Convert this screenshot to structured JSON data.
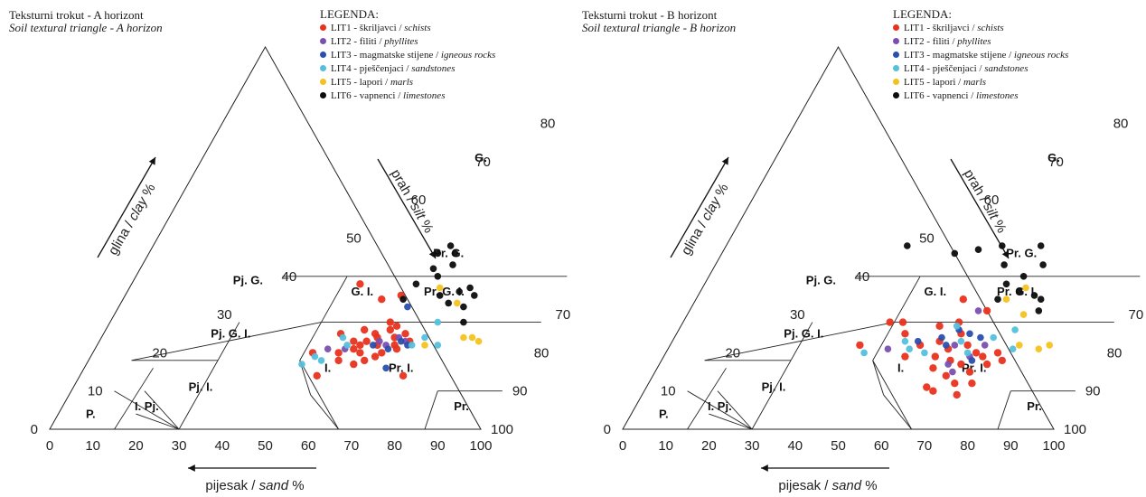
{
  "ticks": [
    "0",
    "10",
    "20",
    "30",
    "40",
    "50",
    "60",
    "70",
    "80",
    "90",
    "100"
  ],
  "legend": {
    "title": "LEGENDA:",
    "items": [
      {
        "code": "LIT1",
        "name": "škriljavci",
        "name_en": "schists",
        "color": "#e8321e"
      },
      {
        "code": "LIT2",
        "name": "filiti",
        "name_en": "phyllites",
        "color": "#7a4fb0"
      },
      {
        "code": "LIT3",
        "name": "magmatske stijene",
        "name_en": "igneous rocks",
        "color": "#2a4fae"
      },
      {
        "code": "LIT4",
        "name": "pješčenjaci",
        "name_en": "sandstones",
        "color": "#54c0dc"
      },
      {
        "code": "LIT5",
        "name": "lapori",
        "name_en": "marls",
        "color": "#f4c21e"
      },
      {
        "code": "LIT6",
        "name": "vapnenci",
        "name_en": "limestones",
        "color": "#0d0d0d"
      }
    ]
  },
  "axes": {
    "sand": {
      "prefix": "pijesak / ",
      "italic": "sand",
      "suffix": "  %"
    },
    "clay": {
      "prefix": "glina / ",
      "italic": "clay",
      "suffix": "  %"
    },
    "silt": {
      "prefix": "prah / ",
      "italic": "silt",
      "suffix": "  %"
    }
  },
  "zones": [
    "G.",
    "Pr. G.",
    "Pj. G.",
    "G. I.",
    "Pr. G. I.",
    "Pj. G. I.",
    "I.",
    "Pr. I.",
    "Pj. I.",
    "I. Pj.",
    "P.",
    "Pr."
  ],
  "panels": [
    {
      "title": "Teksturni trokut - A horizont",
      "subtitle": "Soil textural triangle - A horizon",
      "points": [
        {
          "s": 49,
          "c": 20,
          "k": "LIT1"
        },
        {
          "s": 45,
          "c": 25,
          "k": "LIT1"
        },
        {
          "s": 43,
          "c": 20,
          "k": "LIT1"
        },
        {
          "s": 42,
          "c": 18,
          "k": "LIT1"
        },
        {
          "s": 41,
          "c": 23,
          "k": "LIT1"
        },
        {
          "s": 40,
          "c": 26,
          "k": "LIT1"
        },
        {
          "s": 39,
          "c": 22,
          "k": "LIT1"
        },
        {
          "s": 38,
          "c": 20,
          "k": "LIT1"
        },
        {
          "s": 37,
          "c": 25,
          "k": "LIT1"
        },
        {
          "s": 36,
          "c": 18,
          "k": "LIT1"
        },
        {
          "s": 35,
          "c": 22,
          "k": "LIT1"
        },
        {
          "s": 34,
          "c": 26,
          "k": "LIT1"
        },
        {
          "s": 33,
          "c": 20,
          "k": "LIT1"
        },
        {
          "s": 32,
          "c": 24,
          "k": "LIT1"
        },
        {
          "s": 31,
          "c": 22,
          "k": "LIT1"
        },
        {
          "s": 30,
          "c": 25,
          "k": "LIT1"
        },
        {
          "s": 38,
          "c": 17,
          "k": "LIT1"
        },
        {
          "s": 36,
          "c": 24,
          "k": "LIT1"
        },
        {
          "s": 34,
          "c": 19,
          "k": "LIT1"
        },
        {
          "s": 35,
          "c": 28,
          "k": "LIT1"
        },
        {
          "s": 40,
          "c": 21,
          "k": "LIT1"
        },
        {
          "s": 30,
          "c": 21,
          "k": "LIT1"
        },
        {
          "s": 40,
          "c": 34,
          "k": "LIT1"
        },
        {
          "s": 36,
          "c": 35,
          "k": "LIT1"
        },
        {
          "s": 47,
          "c": 38,
          "k": "LIT1"
        },
        {
          "s": 45,
          "c": 14,
          "k": "LIT1"
        },
        {
          "s": 38,
          "c": 23,
          "k": "LIT1"
        },
        {
          "s": 33,
          "c": 27,
          "k": "LIT1"
        },
        {
          "s": 28,
          "c": 23,
          "k": "LIT1"
        },
        {
          "s": 25,
          "c": 14,
          "k": "LIT1"
        },
        {
          "s": 42,
          "c": 21,
          "k": "LIT2"
        },
        {
          "s": 35,
          "c": 23,
          "k": "LIT2"
        },
        {
          "s": 33,
          "c": 22,
          "k": "LIT2"
        },
        {
          "s": 31,
          "c": 24,
          "k": "LIT2"
        },
        {
          "s": 29,
          "c": 23,
          "k": "LIT2"
        },
        {
          "s": 46,
          "c": 21,
          "k": "LIT2"
        },
        {
          "s": 33,
          "c": 32,
          "k": "LIT3"
        },
        {
          "s": 36,
          "c": 22,
          "k": "LIT3"
        },
        {
          "s": 32,
          "c": 21,
          "k": "LIT3"
        },
        {
          "s": 30,
          "c": 23,
          "k": "LIT3"
        },
        {
          "s": 28,
          "c": 22,
          "k": "LIT3"
        },
        {
          "s": 30,
          "c": 16,
          "k": "LIT3"
        },
        {
          "s": 48,
          "c": 19,
          "k": "LIT4"
        },
        {
          "s": 42,
          "c": 22,
          "k": "LIT4"
        },
        {
          "s": 44,
          "c": 24,
          "k": "LIT4"
        },
        {
          "s": 27,
          "c": 22,
          "k": "LIT4"
        },
        {
          "s": 25,
          "c": 24,
          "k": "LIT4"
        },
        {
          "s": 24,
          "c": 28,
          "k": "LIT4"
        },
        {
          "s": 21,
          "c": 22,
          "k": "LIT4"
        },
        {
          "s": 46,
          "c": 18,
          "k": "LIT4"
        },
        {
          "s": 50,
          "c": 17,
          "k": "LIT4"
        },
        {
          "s": 28,
          "c": 37,
          "k": "LIT5"
        },
        {
          "s": 22,
          "c": 33,
          "k": "LIT5"
        },
        {
          "s": 16,
          "c": 24,
          "k": "LIT5"
        },
        {
          "s": 14,
          "c": 24,
          "k": "LIT5"
        },
        {
          "s": 12,
          "c": 23,
          "k": "LIT5"
        },
        {
          "s": 24,
          "c": 22,
          "k": "LIT5"
        },
        {
          "s": 33,
          "c": 46,
          "k": "LIT6"
        },
        {
          "s": 31,
          "c": 48,
          "k": "LIT6"
        },
        {
          "s": 29,
          "c": 46,
          "k": "LIT6"
        },
        {
          "s": 32,
          "c": 42,
          "k": "LIT6"
        },
        {
          "s": 30,
          "c": 40,
          "k": "LIT6"
        },
        {
          "s": 34,
          "c": 38,
          "k": "LIT6"
        },
        {
          "s": 28,
          "c": 43,
          "k": "LIT6"
        },
        {
          "s": 27,
          "c": 35,
          "k": "LIT6"
        },
        {
          "s": 24,
          "c": 33,
          "k": "LIT6"
        },
        {
          "s": 23,
          "c": 36,
          "k": "LIT6"
        },
        {
          "s": 21,
          "c": 37,
          "k": "LIT6"
        },
        {
          "s": 19,
          "c": 35,
          "k": "LIT6"
        },
        {
          "s": 20,
          "c": 32,
          "k": "LIT6"
        },
        {
          "s": 18,
          "c": 28,
          "k": "LIT6"
        },
        {
          "s": 35,
          "c": 34,
          "k": "LIT6"
        }
      ]
    },
    {
      "title": "Teksturni trokut - B horizont",
      "subtitle": "Soil textural triangle - B horizon",
      "points": [
        {
          "s": 56,
          "c": 22,
          "k": "LIT1"
        },
        {
          "s": 52,
          "c": 28,
          "k": "LIT1"
        },
        {
          "s": 49,
          "c": 28,
          "k": "LIT1"
        },
        {
          "s": 47,
          "c": 25,
          "k": "LIT1"
        },
        {
          "s": 44,
          "c": 19,
          "k": "LIT1"
        },
        {
          "s": 42,
          "c": 22,
          "k": "LIT1"
        },
        {
          "s": 40,
          "c": 27,
          "k": "LIT1"
        },
        {
          "s": 38,
          "c": 23,
          "k": "LIT1"
        },
        {
          "s": 37,
          "c": 19,
          "k": "LIT1"
        },
        {
          "s": 36,
          "c": 16,
          "k": "LIT1"
        },
        {
          "s": 35,
          "c": 21,
          "k": "LIT1"
        },
        {
          "s": 34,
          "c": 25,
          "k": "LIT1"
        },
        {
          "s": 33,
          "c": 18,
          "k": "LIT1"
        },
        {
          "s": 32,
          "c": 14,
          "k": "LIT1"
        },
        {
          "s": 31,
          "c": 22,
          "k": "LIT1"
        },
        {
          "s": 30,
          "c": 17,
          "k": "LIT1"
        },
        {
          "s": 29,
          "c": 12,
          "k": "LIT1"
        },
        {
          "s": 28,
          "c": 20,
          "k": "LIT1"
        },
        {
          "s": 27,
          "c": 15,
          "k": "LIT1"
        },
        {
          "s": 26,
          "c": 19,
          "k": "LIT1"
        },
        {
          "s": 25,
          "c": 12,
          "k": "LIT1"
        },
        {
          "s": 24,
          "c": 17,
          "k": "LIT1"
        },
        {
          "s": 35,
          "c": 11,
          "k": "LIT1"
        },
        {
          "s": 36,
          "c": 28,
          "k": "LIT1"
        },
        {
          "s": 38,
          "c": 34,
          "k": "LIT1"
        },
        {
          "s": 31,
          "c": 31,
          "k": "LIT1"
        },
        {
          "s": 33,
          "c": 10,
          "k": "LIT1"
        },
        {
          "s": 27,
          "c": 9,
          "k": "LIT1"
        },
        {
          "s": 23,
          "c": 20,
          "k": "LIT1"
        },
        {
          "s": 21,
          "c": 18,
          "k": "LIT1"
        },
        {
          "s": 34,
          "c": 22,
          "k": "LIT2"
        },
        {
          "s": 33,
          "c": 17,
          "k": "LIT2"
        },
        {
          "s": 31,
          "c": 15,
          "k": "LIT2"
        },
        {
          "s": 29,
          "c": 19,
          "k": "LIT2"
        },
        {
          "s": 27,
          "c": 22,
          "k": "LIT2"
        },
        {
          "s": 49,
          "c": 21,
          "k": "LIT2"
        },
        {
          "s": 33,
          "c": 31,
          "k": "LIT2"
        },
        {
          "s": 43,
          "c": 23,
          "k": "LIT3"
        },
        {
          "s": 38,
          "c": 24,
          "k": "LIT3"
        },
        {
          "s": 36,
          "c": 22,
          "k": "LIT3"
        },
        {
          "s": 35,
          "c": 26,
          "k": "LIT3"
        },
        {
          "s": 32,
          "c": 25,
          "k": "LIT3"
        },
        {
          "s": 29,
          "c": 24,
          "k": "LIT3"
        },
        {
          "s": 28,
          "c": 18,
          "k": "LIT3"
        },
        {
          "s": 54,
          "c": 20,
          "k": "LIT4"
        },
        {
          "s": 44,
          "c": 21,
          "k": "LIT4"
        },
        {
          "s": 40,
          "c": 20,
          "k": "LIT4"
        },
        {
          "s": 36,
          "c": 27,
          "k": "LIT4"
        },
        {
          "s": 33,
          "c": 23,
          "k": "LIT4"
        },
        {
          "s": 30,
          "c": 20,
          "k": "LIT4"
        },
        {
          "s": 26,
          "c": 24,
          "k": "LIT4"
        },
        {
          "s": 22,
          "c": 26,
          "k": "LIT4"
        },
        {
          "s": 20,
          "c": 21,
          "k": "LIT4"
        },
        {
          "s": 46,
          "c": 23,
          "k": "LIT4"
        },
        {
          "s": 28,
          "c": 34,
          "k": "LIT5"
        },
        {
          "s": 25,
          "c": 37,
          "k": "LIT5"
        },
        {
          "s": 22,
          "c": 30,
          "k": "LIT5"
        },
        {
          "s": 14,
          "c": 21,
          "k": "LIT5"
        },
        {
          "s": 12,
          "c": 22,
          "k": "LIT5"
        },
        {
          "s": 19,
          "c": 22,
          "k": "LIT5"
        },
        {
          "s": 58,
          "c": 48,
          "k": "LIT6"
        },
        {
          "s": 46,
          "c": 46,
          "k": "LIT6"
        },
        {
          "s": 41,
          "c": 47,
          "k": "LIT6"
        },
        {
          "s": 36,
          "c": 48,
          "k": "LIT6"
        },
        {
          "s": 33,
          "c": 43,
          "k": "LIT6"
        },
        {
          "s": 30,
          "c": 38,
          "k": "LIT6"
        },
        {
          "s": 27,
          "c": 40,
          "k": "LIT6"
        },
        {
          "s": 24,
          "c": 43,
          "k": "LIT6"
        },
        {
          "s": 22,
          "c": 35,
          "k": "LIT6"
        },
        {
          "s": 20,
          "c": 34,
          "k": "LIT6"
        },
        {
          "s": 19,
          "c": 31,
          "k": "LIT6"
        },
        {
          "s": 26,
          "c": 36,
          "k": "LIT6"
        },
        {
          "s": 30,
          "c": 34,
          "k": "LIT6"
        },
        {
          "s": 27,
          "c": 48,
          "k": "LIT6"
        }
      ]
    }
  ]
}
